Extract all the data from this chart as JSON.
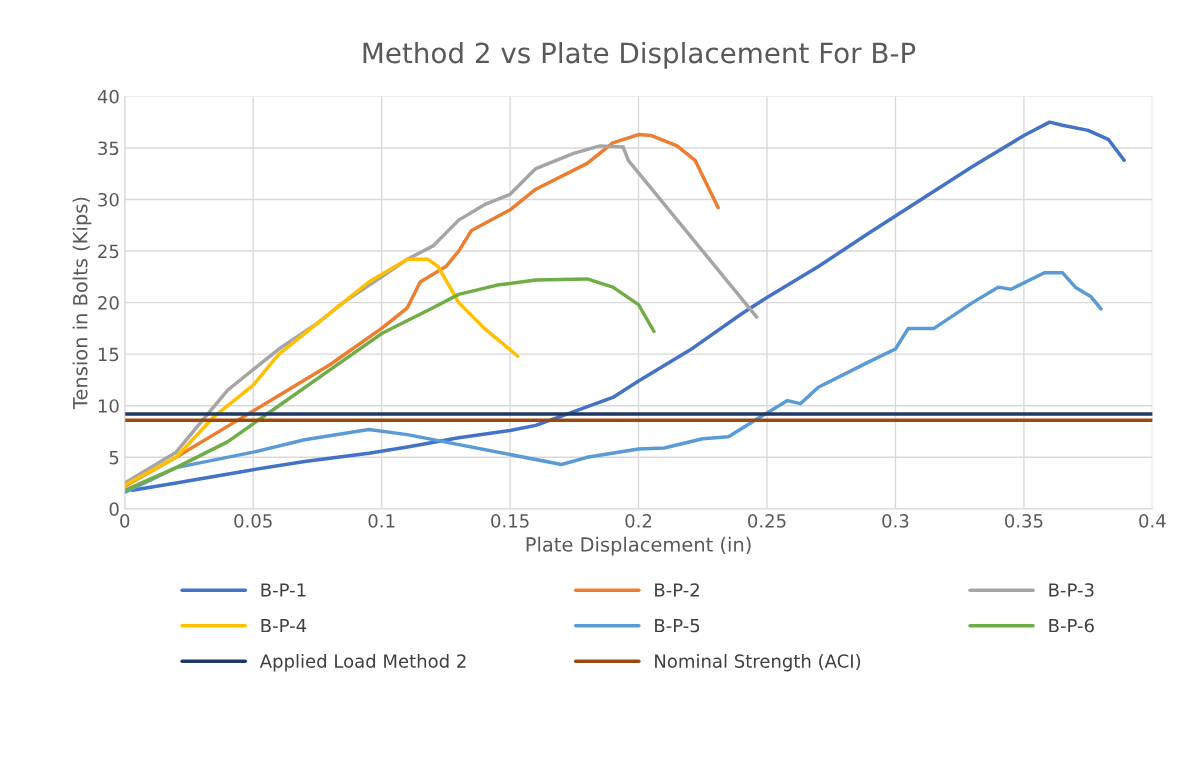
{
  "chart_data": {
    "type": "line",
    "title": "Method 2 vs Plate Displacement For B-P",
    "xlabel": "Plate Displacement (in)",
    "ylabel": "Tension in Bolts (Kips)",
    "xlim": [
      0,
      0.4
    ],
    "xticks": [
      0,
      0.05,
      0.1,
      0.15,
      0.2,
      0.25,
      0.3,
      0.35,
      0.4
    ],
    "ylim": [
      0,
      40
    ],
    "yticks": [
      0,
      5,
      10,
      15,
      20,
      25,
      30,
      35,
      40
    ],
    "grid": true,
    "legend": "bottom",
    "marker": "none",
    "line_style": "solid",
    "series": [
      {
        "name": "B-P-1",
        "color": "#4472c4",
        "x": [
          0.003,
          0.02,
          0.05,
          0.07,
          0.095,
          0.11,
          0.13,
          0.15,
          0.16,
          0.17,
          0.19,
          0.2,
          0.22,
          0.24,
          0.25,
          0.27,
          0.29,
          0.31,
          0.33,
          0.35,
          0.36,
          0.365,
          0.375,
          0.383,
          0.389
        ],
        "values": [
          1.8,
          2.5,
          3.8,
          4.6,
          5.4,
          6,
          6.9,
          7.6,
          8.1,
          9,
          10.8,
          12.4,
          15.4,
          18.9,
          20.5,
          23.5,
          26.8,
          30,
          33.2,
          36.2,
          37.5,
          37.2,
          36.7,
          35.8,
          33.8
        ]
      },
      {
        "name": "B-P-2",
        "color": "#ed7d31",
        "x": [
          0,
          0.02,
          0.04,
          0.06,
          0.08,
          0.1,
          0.11,
          0.115,
          0.125,
          0.13,
          0.135,
          0.15,
          0.16,
          0.18,
          0.19,
          0.2,
          0.205,
          0.215,
          0.222,
          0.231
        ],
        "values": [
          2.2,
          5,
          8,
          11,
          14,
          17.5,
          19.5,
          22,
          23.5,
          25,
          27,
          29,
          31,
          33.5,
          35.5,
          36.3,
          36.2,
          35.2,
          33.8,
          29.2
        ]
      },
      {
        "name": "B-P-3",
        "color": "#a5a5a5",
        "x": [
          0,
          0.02,
          0.03,
          0.04,
          0.05,
          0.06,
          0.075,
          0.085,
          0.1,
          0.11,
          0.12,
          0.13,
          0.14,
          0.15,
          0.16,
          0.175,
          0.185,
          0.194,
          0.196,
          0.246
        ],
        "values": [
          2.5,
          5.5,
          8.5,
          11.5,
          13.5,
          15.5,
          18,
          20,
          22.5,
          24.2,
          25.5,
          28,
          29.5,
          30.5,
          33,
          34.5,
          35.2,
          35.1,
          33.8,
          18.6
        ]
      },
      {
        "name": "B-P-4",
        "color": "#ffc000",
        "x": [
          0,
          0.02,
          0.035,
          0.05,
          0.06,
          0.07,
          0.085,
          0.095,
          0.11,
          0.118,
          0.122,
          0.13,
          0.14,
          0.153
        ],
        "values": [
          2.3,
          5,
          9,
          12,
          15,
          17,
          20,
          22,
          24.2,
          24.2,
          23.5,
          20,
          17.5,
          14.8
        ]
      },
      {
        "name": "B-P-5",
        "color": "#5b9bd5",
        "x": [
          0,
          0.02,
          0.05,
          0.07,
          0.095,
          0.11,
          0.17,
          0.18,
          0.2,
          0.21,
          0.225,
          0.235,
          0.248,
          0.258,
          0.263,
          0.27,
          0.29,
          0.3,
          0.305,
          0.315,
          0.33,
          0.34,
          0.345,
          0.358,
          0.365,
          0.37,
          0.376,
          0.38
        ],
        "values": [
          1.6,
          4,
          5.5,
          6.7,
          7.7,
          7.2,
          4.3,
          5,
          5.8,
          5.9,
          6.8,
          7,
          9,
          10.5,
          10.2,
          11.8,
          14.3,
          15.5,
          17.5,
          17.5,
          20,
          21.5,
          21.3,
          22.9,
          22.9,
          21.5,
          20.6,
          19.4
        ]
      },
      {
        "name": "B-P-6",
        "color": "#70ad47",
        "x": [
          0,
          0.02,
          0.04,
          0.06,
          0.08,
          0.1,
          0.12,
          0.13,
          0.145,
          0.16,
          0.18,
          0.19,
          0.2,
          0.206
        ],
        "values": [
          1.8,
          4,
          6.5,
          10,
          13.5,
          17,
          19.5,
          20.8,
          21.7,
          22.2,
          22.3,
          21.5,
          19.8,
          17.2
        ]
      },
      {
        "name": "Applied Load Method 2",
        "color": "#203864",
        "x": [
          0,
          0.4
        ],
        "values": [
          9.2,
          9.2
        ]
      },
      {
        "name": "Nominal Strength (ACI)",
        "color": "#9e480e",
        "x": [
          0,
          0.4
        ],
        "values": [
          8.6,
          8.6
        ]
      }
    ]
  }
}
